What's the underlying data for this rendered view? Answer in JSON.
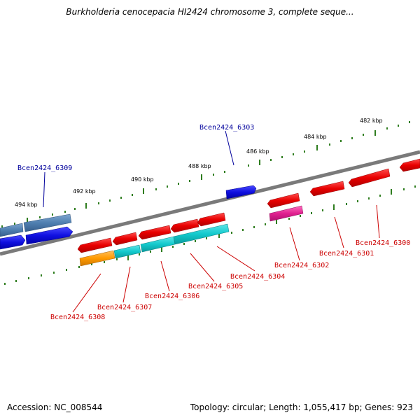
{
  "title": "Burkholderia cenocepacia HI2424 chromosome 3, complete seque...",
  "footer": {
    "accession": "Accession: NC_008544",
    "summary": "Topology: circular; Length: 1,055,417 bp; Genes: 923"
  },
  "scale_labels": [
    "482 kbp",
    "484 kbp",
    "486 kbp",
    "488 kbp",
    "490 kbp",
    "492 kbp",
    "494 kbp"
  ],
  "gene_labels": [
    {
      "id": "Bcen2424_6303",
      "color": "#00009c"
    },
    {
      "id": "Bcen2424_6309",
      "color": "#00009c"
    },
    {
      "id": "Bcen2424_6300",
      "color": "#cc0000"
    },
    {
      "id": "Bcen2424_6301",
      "color": "#cc0000"
    },
    {
      "id": "Bcen2424_6302",
      "color": "#cc0000"
    },
    {
      "id": "Bcen2424_6304",
      "color": "#cc0000"
    },
    {
      "id": "Bcen2424_6305",
      "color": "#cc0000"
    },
    {
      "id": "Bcen2424_6306",
      "color": "#cc0000"
    },
    {
      "id": "Bcen2424_6307",
      "color": "#cc0000"
    },
    {
      "id": "Bcen2424_6308",
      "color": "#cc0000"
    }
  ],
  "colors": {
    "backbone": "#7a7a7a",
    "tick": "#2f7d1f",
    "forward_blue": "#1010e0",
    "steel_blue": "#4f7fb0",
    "reverse_red": "#e80000",
    "cyan": "#12c9cc",
    "magenta": "#e0208f",
    "orange": "#ff9a00"
  }
}
